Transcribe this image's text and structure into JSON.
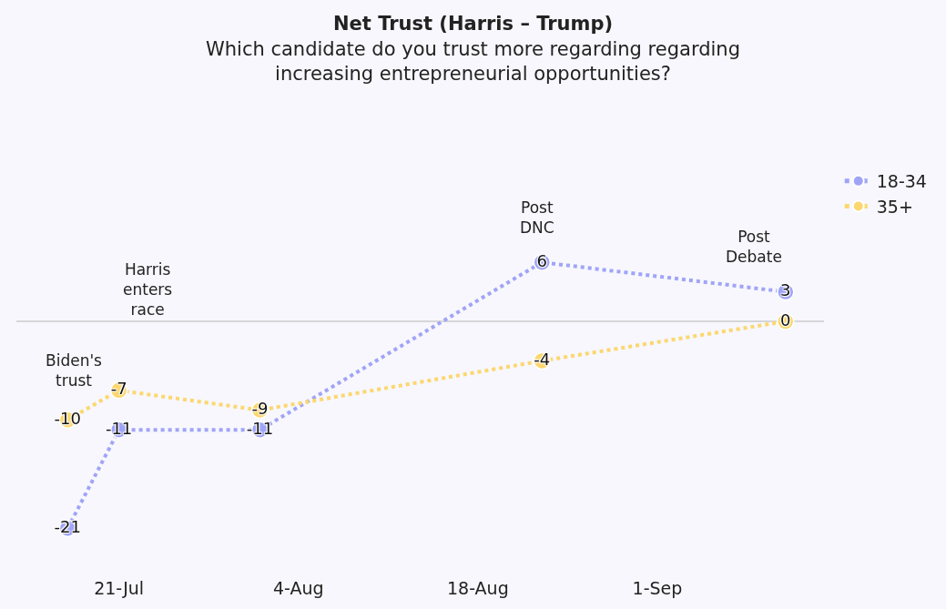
{
  "chart_data": {
    "type": "line",
    "title": "Net Trust (Harris – Trump)",
    "subtitle": "Which candidate do you trust more regarding regarding\nincreasing entrepreneurial opportunities?",
    "x": [
      "--07-17",
      "--07-21",
      "--08-01",
      "--08-23",
      "--09-11"
    ],
    "series": [
      {
        "name": "18-34",
        "color": "#a0a4f7",
        "values": [
          -21,
          -11,
          -11,
          6,
          3
        ]
      },
      {
        "name": "35+",
        "color": "#fcd76e",
        "values": [
          -10,
          -7,
          -9,
          -4,
          0
        ]
      }
    ],
    "xlim": [
      "--07-13",
      "--09-14"
    ],
    "xticks": [
      {
        "value": "--07-21",
        "label": "21-Jul"
      },
      {
        "value": "--08-04",
        "label": "4-Aug"
      },
      {
        "value": "--08-18",
        "label": "18-Aug"
      },
      {
        "value": "--09-01",
        "label": "1-Sep"
      }
    ],
    "tick_labels": "x",
    "ref_lines": [
      {
        "axis": "y",
        "value": 0,
        "color": "#cccccc"
      }
    ],
    "annotations": [
      "Biden's\ntrust",
      "Harris\nenters\nrace",
      "Post\nDNC",
      "Post\nDebate"
    ],
    "data_labels": true,
    "marker": "circle",
    "line_style": "dotted",
    "grid": false,
    "legend": "top right"
  }
}
